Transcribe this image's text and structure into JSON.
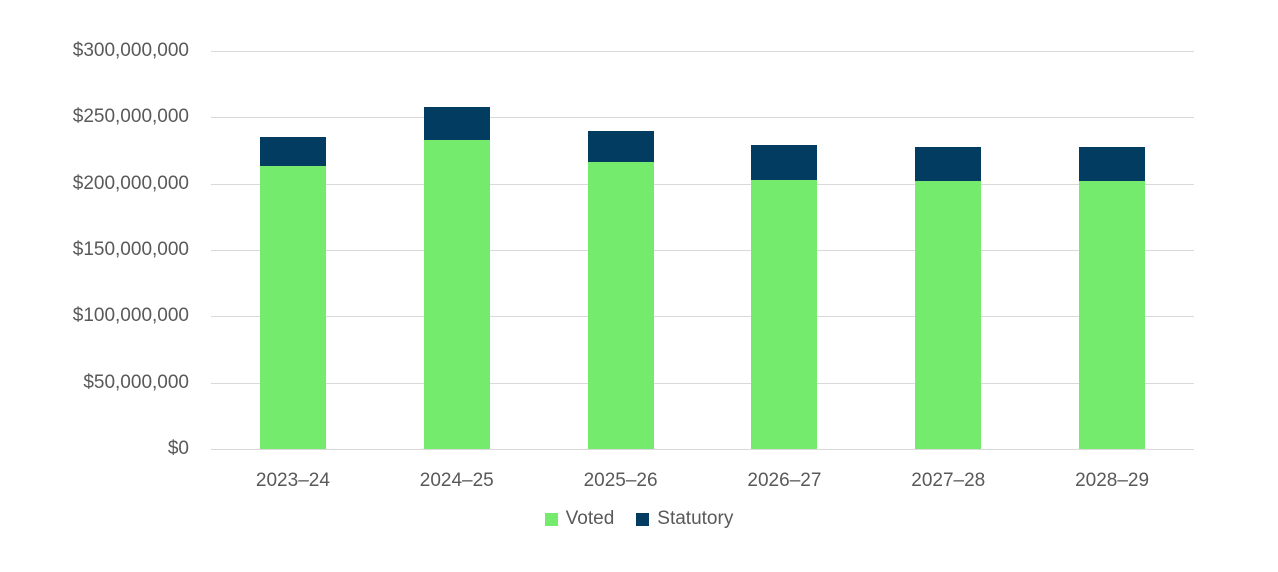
{
  "chart_data": {
    "type": "bar",
    "stacked": true,
    "title": "",
    "xlabel": "",
    "ylabel": "",
    "categories": [
      "2023–24",
      "2024–25",
      "2025–26",
      "2026–27",
      "2027–28",
      "2028–29"
    ],
    "series": [
      {
        "name": "Voted",
        "color": "#75EB6E",
        "values": [
          213000000,
          233000000,
          216000000,
          203000000,
          202000000,
          202000000
        ]
      },
      {
        "name": "Statutory",
        "color": "#023D61",
        "values": [
          22000000,
          25000000,
          24000000,
          26000000,
          26000000,
          26000000
        ]
      }
    ],
    "ylim": [
      0,
      300000000
    ],
    "yticks": [
      "$0",
      "$50,000,000",
      "$100,000,000",
      "$150,000,000",
      "$200,000,000",
      "$250,000,000",
      "$300,000,000"
    ],
    "grid": true,
    "legend_position": "bottom"
  }
}
